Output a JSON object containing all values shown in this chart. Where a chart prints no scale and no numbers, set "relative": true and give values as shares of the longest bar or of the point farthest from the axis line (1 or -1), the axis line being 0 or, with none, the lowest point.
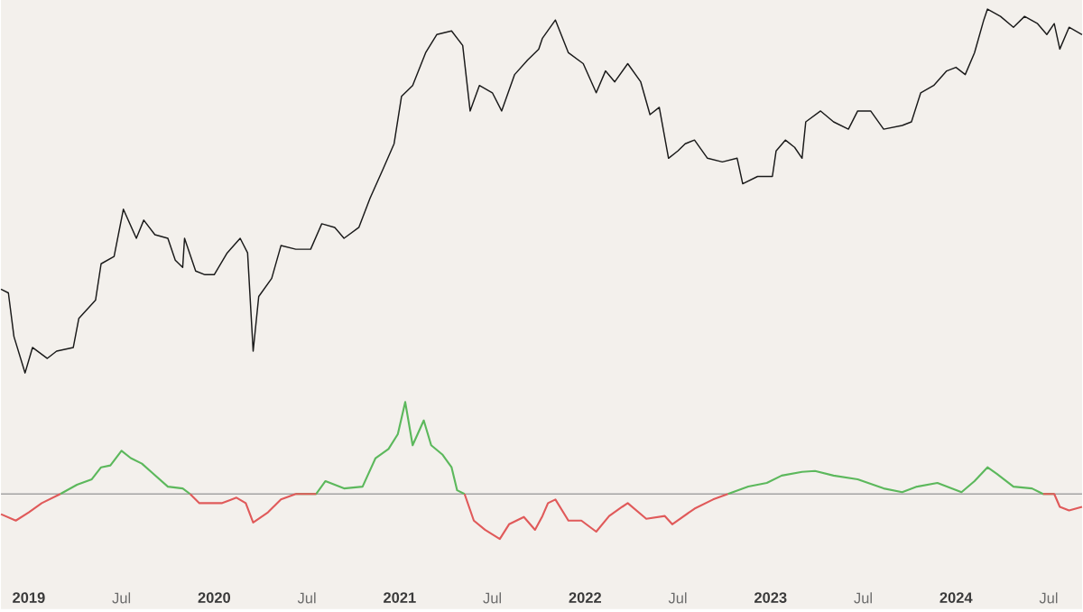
{
  "chart_data": [
    {
      "type": "line",
      "relative": true,
      "tick_labels": false,
      "xlim": [
        2018.85,
        2024.68
      ],
      "x": [
        2018.85,
        2018.89,
        2018.92,
        2018.98,
        2019.02,
        2019.1,
        2019.15,
        2019.24,
        2019.27,
        2019.36,
        2019.39,
        2019.46,
        2019.51,
        2019.58,
        2019.62,
        2019.68,
        2019.75,
        2019.79,
        2019.83,
        2019.84,
        2019.9,
        2019.95,
        2020.0,
        2020.07,
        2020.14,
        2020.18,
        2020.21,
        2020.24,
        2020.31,
        2020.36,
        2020.44,
        2020.52,
        2020.58,
        2020.65,
        2020.7,
        2020.78,
        2020.84,
        2020.91,
        2020.97,
        2021.01,
        2021.07,
        2021.14,
        2021.2,
        2021.28,
        2021.34,
        2021.38,
        2021.43,
        2021.5,
        2021.55,
        2021.62,
        2021.69,
        2021.75,
        2021.77,
        2021.84,
        2021.91,
        2021.99,
        2022.06,
        2022.11,
        2022.16,
        2022.23,
        2022.3,
        2022.35,
        2022.4,
        2022.45,
        2022.5,
        2022.54,
        2022.59,
        2022.66,
        2022.74,
        2022.82,
        2022.85,
        2022.93,
        2023.01,
        2023.03,
        2023.08,
        2023.13,
        2023.17,
        2023.19,
        2023.27,
        2023.34,
        2023.42,
        2023.47,
        2023.54,
        2023.61,
        2023.71,
        2023.76,
        2023.81,
        2023.88,
        2023.95,
        2024.0,
        2024.05,
        2024.1,
        2024.15,
        2024.17,
        2024.24,
        2024.31,
        2024.37,
        2024.44,
        2024.49,
        2024.53,
        2024.56,
        2024.61,
        2024.68
      ],
      "series": [
        {
          "color": "#1a1a1a",
          "values": [
            0.23,
            0.22,
            0.1,
            0.0,
            0.07,
            0.04,
            0.06,
            0.07,
            0.15,
            0.2,
            0.3,
            0.32,
            0.45,
            0.37,
            0.42,
            0.38,
            0.37,
            0.31,
            0.29,
            0.37,
            0.28,
            0.27,
            0.27,
            0.33,
            0.37,
            0.33,
            0.06,
            0.21,
            0.26,
            0.35,
            0.34,
            0.34,
            0.41,
            0.4,
            0.37,
            0.4,
            0.48,
            0.56,
            0.63,
            0.76,
            0.79,
            0.88,
            0.93,
            0.94,
            0.9,
            0.72,
            0.79,
            0.77,
            0.72,
            0.82,
            0.86,
            0.89,
            0.92,
            0.97,
            0.88,
            0.85,
            0.77,
            0.83,
            0.8,
            0.85,
            0.8,
            0.71,
            0.73,
            0.59,
            0.61,
            0.63,
            0.64,
            0.59,
            0.58,
            0.59,
            0.52,
            0.54,
            0.54,
            0.61,
            0.64,
            0.62,
            0.59,
            0.69,
            0.72,
            0.69,
            0.67,
            0.72,
            0.72,
            0.67,
            0.68,
            0.69,
            0.77,
            0.79,
            0.83,
            0.84,
            0.82,
            0.88,
            0.97,
            1.0,
            0.98,
            0.95,
            0.98,
            0.96,
            0.93,
            0.96,
            0.89,
            0.95,
            0.93
          ]
        }
      ]
    },
    {
      "type": "line",
      "relative": true,
      "tick_labels": "x",
      "xlim": [
        2018.85,
        2024.68
      ],
      "xticks": [
        2019,
        {
          "value": 2019.5,
          "label": "Jul"
        },
        2020,
        {
          "value": 2020.5,
          "label": "Jul"
        },
        2021,
        {
          "value": 2021.5,
          "label": "Jul"
        },
        2022,
        {
          "value": 2022.5,
          "label": "Jul"
        },
        2023,
        {
          "value": 2023.5,
          "label": "Jul"
        },
        2024,
        {
          "value": 2024.5,
          "label": "Jul"
        }
      ],
      "ref_lines": [
        {
          "axis": "y",
          "value": 0,
          "color": "#a3a3a3"
        }
      ],
      "x": [
        2018.85,
        2018.93,
        2019.0,
        2019.07,
        2019.17,
        2019.26,
        2019.34,
        2019.39,
        2019.44,
        2019.5,
        2019.55,
        2019.61,
        2019.66,
        2019.75,
        2019.83,
        2019.87,
        2019.92,
        2020.04,
        2020.12,
        2020.17,
        2020.21,
        2020.29,
        2020.36,
        2020.44,
        2020.55,
        2020.6,
        2020.7,
        2020.8,
        2020.87,
        2020.94,
        2020.99,
        2021.03,
        2021.07,
        2021.13,
        2021.17,
        2021.23,
        2021.28,
        2021.31,
        2021.35,
        2021.4,
        2021.46,
        2021.54,
        2021.59,
        2021.67,
        2021.73,
        2021.77,
        2021.8,
        2021.84,
        2021.91,
        2021.98,
        2022.06,
        2022.13,
        2022.2,
        2022.23,
        2022.33,
        2022.43,
        2022.47,
        2022.59,
        2022.69,
        2022.77,
        2022.88,
        2022.98,
        2023.06,
        2023.17,
        2023.24,
        2023.34,
        2023.47,
        2023.61,
        2023.71,
        2023.79,
        2023.9,
        2024.03,
        2024.1,
        2024.17,
        2024.22,
        2024.31,
        2024.41,
        2024.47,
        2024.53,
        2024.56,
        2024.61,
        2024.68
      ],
      "series": [
        {
          "color": "#5cb85c",
          "values": [
            null,
            null,
            null,
            null,
            0.0,
            0.1,
            0.16,
            0.29,
            0.31,
            0.47,
            0.39,
            0.33,
            0.24,
            0.08,
            0.06,
            0.0,
            null,
            null,
            null,
            null,
            null,
            null,
            null,
            0.0,
            0.0,
            0.14,
            0.06,
            0.08,
            0.39,
            0.49,
            0.65,
            1.0,
            0.53,
            0.8,
            0.53,
            0.43,
            0.29,
            0.04,
            0.0,
            null,
            null,
            null,
            null,
            null,
            null,
            null,
            null,
            null,
            null,
            null,
            null,
            null,
            null,
            null,
            null,
            null,
            null,
            null,
            null,
            0.0,
            0.08,
            0.12,
            0.2,
            0.24,
            0.25,
            0.2,
            0.16,
            0.06,
            0.02,
            0.08,
            0.12,
            0.02,
            0.14,
            0.29,
            0.22,
            0.08,
            0.06,
            0.0,
            0.0,
            null,
            null,
            null
          ]
        },
        {
          "color": "#e05a5a",
          "values": [
            -0.22,
            -0.29,
            -0.2,
            -0.1,
            0.0,
            null,
            null,
            null,
            null,
            null,
            null,
            null,
            null,
            null,
            null,
            0.0,
            -0.1,
            -0.1,
            -0.04,
            -0.1,
            -0.31,
            -0.2,
            -0.06,
            0.0,
            0.0,
            null,
            null,
            null,
            null,
            null,
            null,
            null,
            null,
            null,
            null,
            null,
            null,
            null,
            0.0,
            -0.29,
            -0.39,
            -0.49,
            -0.33,
            -0.25,
            -0.39,
            -0.24,
            -0.1,
            -0.06,
            -0.29,
            -0.29,
            -0.41,
            -0.24,
            -0.14,
            -0.1,
            -0.27,
            -0.24,
            -0.33,
            -0.16,
            -0.06,
            0.0,
            null,
            null,
            null,
            null,
            null,
            null,
            null,
            null,
            null,
            null,
            null,
            null,
            null,
            null,
            null,
            null,
            null,
            0.0,
            0.0,
            -0.14,
            -0.18,
            -0.14
          ]
        }
      ]
    }
  ]
}
